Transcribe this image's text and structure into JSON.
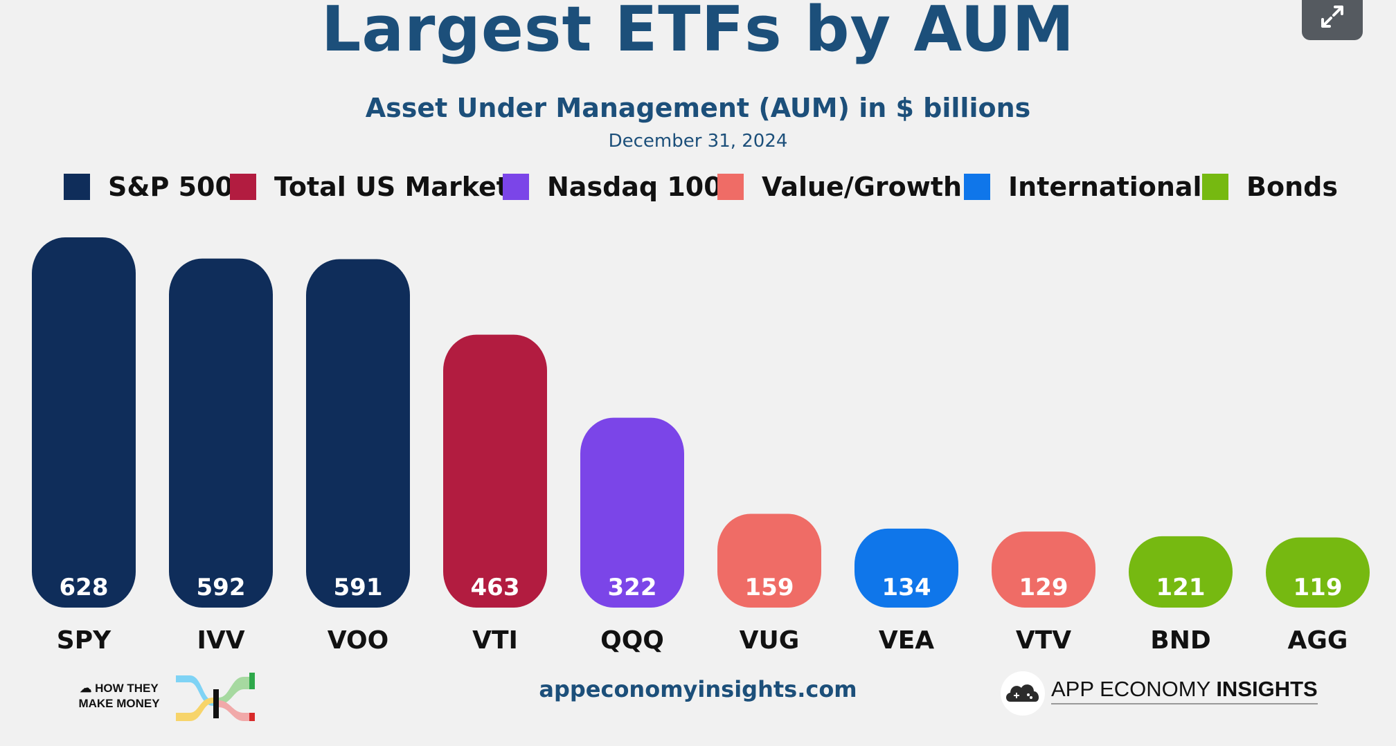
{
  "header": {
    "title": "Largest ETFs by AUM",
    "subtitle": "Asset Under Management (AUM) in $ billions",
    "date": "December 31, 2024"
  },
  "legend": [
    {
      "label": "S&P 500",
      "color": "#0f2d5a"
    },
    {
      "label": "Total US Market",
      "color": "#b21c40"
    },
    {
      "label": "Nasdaq 100",
      "color": "#7b45e8"
    },
    {
      "label": "Value/Growth",
      "color": "#ef6c66"
    },
    {
      "label": "International",
      "color": "#0f76ea"
    },
    {
      "label": "Bonds",
      "color": "#76b911"
    }
  ],
  "chart_data": {
    "type": "bar",
    "title": "Largest ETFs by AUM",
    "subtitle": "Asset Under Management (AUM) in $ billions",
    "date": "December 31, 2024",
    "categories": [
      "SPY",
      "IVV",
      "VOO",
      "VTI",
      "QQQ",
      "VUG",
      "VEA",
      "VTV",
      "BND",
      "AGG"
    ],
    "values": [
      628,
      592,
      591,
      463,
      322,
      159,
      134,
      129,
      121,
      119
    ],
    "category_group": [
      "S&P 500",
      "S&P 500",
      "S&P 500",
      "Total US Market",
      "Nasdaq 100",
      "Value/Growth",
      "International",
      "Value/Growth",
      "Bonds",
      "Bonds"
    ],
    "legend_position": "top",
    "grid": false,
    "data_labels": true
  },
  "footer": {
    "website": "appeconomyinsights.com",
    "left_logo": "HOW THEY MAKE MONEY",
    "right_logo_light": "APP ECONOMY ",
    "right_logo_bold": "INSIGHTS"
  },
  "icons": {
    "expand": "expand-arrows-icon",
    "cloud": "cloud-icon",
    "gamepad": "gamepad-cloud-icon"
  }
}
